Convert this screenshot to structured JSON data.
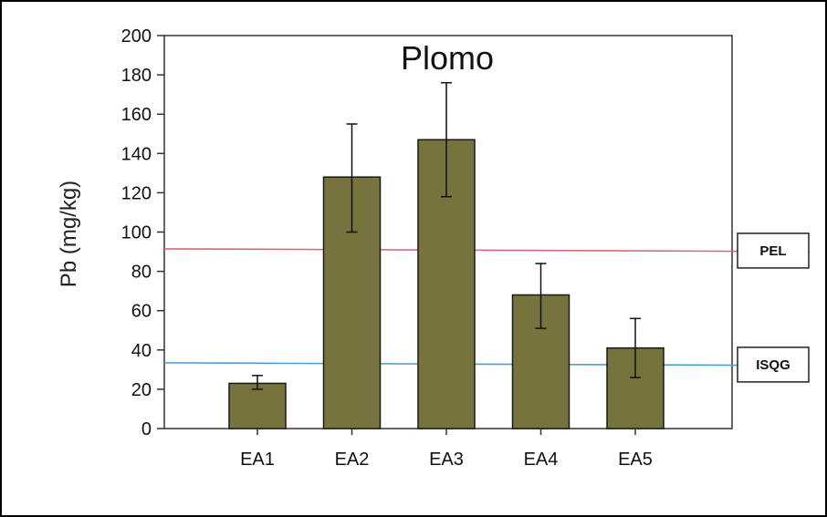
{
  "chart_data": {
    "type": "bar",
    "title": "Plomo",
    "ylabel": "Pb (mg/kg)",
    "xlabel": "",
    "categories": [
      "EA1",
      "EA2",
      "EA3",
      "EA4",
      "EA5"
    ],
    "values": [
      23,
      128,
      147,
      68,
      41
    ],
    "error_low": [
      20,
      100,
      118,
      51,
      26
    ],
    "error_high": [
      27,
      155,
      176,
      84,
      56
    ],
    "ylim": [
      0,
      200
    ],
    "yticks": [
      0,
      20,
      40,
      60,
      80,
      100,
      120,
      140,
      160,
      180,
      200
    ],
    "bar_color": "#77733f",
    "reference_lines": [
      {
        "label": "PEL",
        "value": 91,
        "color": "#d9667a"
      },
      {
        "label": "ISQG",
        "value": 33,
        "color": "#4a9fd0"
      }
    ],
    "grid": false,
    "legend": "none"
  }
}
